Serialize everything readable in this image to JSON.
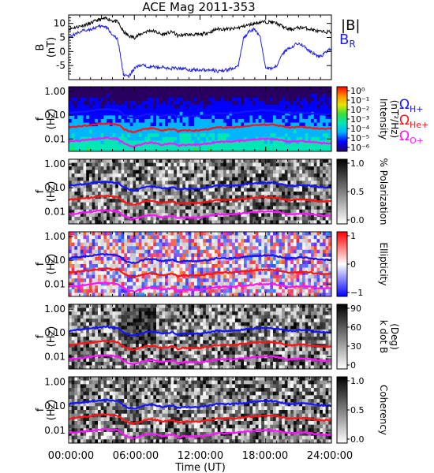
{
  "figure": {
    "title": "ACE Mag 2011-353",
    "xlabel": "Time (UT)",
    "x_ticks": [
      "00:00:00",
      "06:00:00",
      "12:00:00",
      "18:00:00",
      "24:00:00"
    ],
    "x_range_hours": [
      0,
      24
    ]
  },
  "chart_data": [
    {
      "type": "line",
      "panel": "magnetic-field",
      "ylabel": "B",
      "yunit": "(nT)",
      "ylim": [
        -10,
        13
      ],
      "y_ticks": [
        "10",
        "5",
        "0",
        "-5"
      ],
      "legend": [
        "|B|",
        "BR"
      ],
      "series": [
        {
          "name": "|B|",
          "color": "#000000",
          "x": [
            0,
            0.5,
            1,
            1.5,
            2,
            2.5,
            3,
            3.5,
            4,
            4.5,
            5,
            5.5,
            6,
            6.5,
            7,
            7.5,
            8,
            8.5,
            9,
            9.5,
            10,
            10.5,
            11,
            11.5,
            12,
            12.5,
            13,
            13.5,
            14,
            14.5,
            15,
            15.5,
            16,
            16.5,
            17,
            17.5,
            18,
            18.5,
            19,
            19.5,
            20,
            20.5,
            21,
            21.5,
            22,
            22.5,
            23,
            23.5,
            24
          ],
          "values": [
            8,
            8.5,
            9,
            9.5,
            10,
            11,
            11.5,
            11.8,
            11,
            10.5,
            7,
            5.5,
            5,
            6,
            7,
            7.5,
            7,
            6,
            6.5,
            7,
            5.5,
            6,
            6,
            6,
            6,
            6.5,
            7,
            8,
            8,
            8,
            8,
            8.5,
            9,
            9.5,
            10,
            10.5,
            10.5,
            10.5,
            10,
            9,
            8,
            8,
            8.5,
            8.5,
            8,
            7.5,
            7,
            7,
            7
          ]
        },
        {
          "name": "BR",
          "color": "#1f1fe0",
          "x": [
            0,
            0.5,
            1,
            1.5,
            2,
            2.5,
            3,
            3.5,
            4,
            4.5,
            5,
            5.5,
            6,
            6.5,
            7,
            7.5,
            8,
            8.5,
            9,
            9.5,
            10,
            10.5,
            11,
            11.5,
            12,
            12.5,
            13,
            13.5,
            14,
            14.5,
            15,
            15.5,
            16,
            16.5,
            17,
            17.5,
            18,
            18.5,
            19,
            19.5,
            20,
            20.5,
            21,
            21.5,
            22,
            22.5,
            23,
            23.5,
            24
          ],
          "values": [
            5,
            6,
            7,
            7.5,
            8,
            8.5,
            9,
            8.5,
            6,
            4,
            -8,
            -9,
            -6,
            -5,
            -5,
            -5.5,
            -5.5,
            -5.5,
            -6,
            -6,
            -6,
            -6,
            -6.5,
            -6.5,
            -6.5,
            -6.5,
            -6.5,
            -7,
            -7,
            -6.5,
            -6,
            -5,
            5,
            7,
            8,
            5,
            -6,
            -6,
            -5,
            -1,
            1,
            2,
            3,
            2,
            0,
            -1,
            -2,
            0,
            1
          ]
        }
      ]
    },
    {
      "type": "heatmap",
      "panel": "intensity-spectrogram",
      "ylabel": "f",
      "yunit": "(Hz)",
      "y_scale": "log",
      "y_ticks": [
        "1.00",
        "0.10",
        "0.01"
      ],
      "colorbar_label": "Intensity",
      "colorbar_unit": "(nT²/Hz)",
      "colorbar_ticks": [
        "10⁰",
        "10⁻¹",
        "10⁻²",
        "10⁻³",
        "10⁻⁴",
        "10⁻⁵",
        "10⁻⁶"
      ],
      "colorbar_colors": [
        "#280060",
        "#0000ff",
        "#00b4ff",
        "#00e6b4",
        "#3cdc3c",
        "#e6e600",
        "#ff8c00",
        "#ff0000"
      ],
      "legend": [
        "ΩH+",
        "ΩHe+",
        "ΩO+"
      ]
    },
    {
      "type": "heatmap",
      "panel": "polarization",
      "ylabel": "f",
      "yunit": "(Hz)",
      "y_scale": "log",
      "y_ticks": [
        "1.00",
        "0.10",
        "0.01"
      ],
      "colorbar_label": "% Polarization",
      "colorbar_ticks": [
        "1.0",
        "0.5",
        "0.0"
      ],
      "colorbar_colors": [
        "#ffffff",
        "#000000"
      ]
    },
    {
      "type": "heatmap",
      "panel": "ellipticity",
      "ylabel": "f",
      "yunit": "(Hz)",
      "y_scale": "log",
      "y_ticks": [
        "1.00",
        "0.10",
        "0.01"
      ],
      "colorbar_label": "Ellipticity",
      "colorbar_ticks": [
        "1",
        "0",
        "−1"
      ],
      "colorbar_colors": [
        "#0000ff",
        "#ffffff",
        "#ff0000"
      ]
    },
    {
      "type": "heatmap",
      "panel": "wave-normal-angle",
      "ylabel": "f",
      "yunit": "(Hz)",
      "y_scale": "log",
      "y_ticks": [
        "1.00",
        "0.10",
        "0.01"
      ],
      "colorbar_label": "k dot B",
      "colorbar_unit": "(Deg)",
      "colorbar_ticks": [
        "90",
        "60",
        "30",
        "0"
      ],
      "colorbar_colors": [
        "#ffffff",
        "#000000"
      ]
    },
    {
      "type": "heatmap",
      "panel": "coherency",
      "ylabel": "f",
      "yunit": "(Hz)",
      "y_scale": "log",
      "y_ticks": [
        "1.00",
        "0.10",
        "0.01"
      ],
      "colorbar_label": "Coherency",
      "colorbar_ticks": [
        "1.0",
        "0.5",
        "0.0"
      ],
      "colorbar_colors": [
        "#ffffff",
        "#000000"
      ]
    }
  ],
  "cyclotron_frequencies": {
    "x_hours": [
      0,
      0.5,
      1,
      1.5,
      2,
      2.5,
      3,
      3.5,
      4,
      4.5,
      5,
      5.5,
      6,
      6.5,
      7,
      7.5,
      8,
      8.5,
      9,
      9.5,
      10,
      10.5,
      11,
      11.5,
      12,
      12.5,
      13,
      13.5,
      14,
      14.5,
      15,
      15.5,
      16,
      16.5,
      17,
      17.5,
      18,
      18.5,
      19,
      19.5,
      20,
      20.5,
      21,
      21.5,
      22,
      22.5,
      23,
      23.5,
      24
    ],
    "B_nT": [
      8,
      8.5,
      9,
      9.5,
      10,
      11,
      11.5,
      11.8,
      11,
      10.5,
      7,
      5.5,
      5,
      6,
      7,
      7.5,
      7,
      6,
      6.5,
      7,
      5.5,
      6,
      6,
      6,
      6,
      6.5,
      7,
      8,
      8,
      8,
      8,
      8.5,
      9,
      9.5,
      10,
      10.5,
      10.5,
      10.5,
      10,
      9,
      8,
      8,
      8.5,
      8.5,
      8,
      7.5,
      7,
      7,
      7
    ],
    "lines": [
      {
        "name": "ΩH+",
        "color": "#1414ff",
        "divisor": 1
      },
      {
        "name": "ΩHe+",
        "color": "#ff1414",
        "divisor": 4
      },
      {
        "name": "ΩO+",
        "color": "#ff14ff",
        "divisor": 16
      }
    ]
  }
}
